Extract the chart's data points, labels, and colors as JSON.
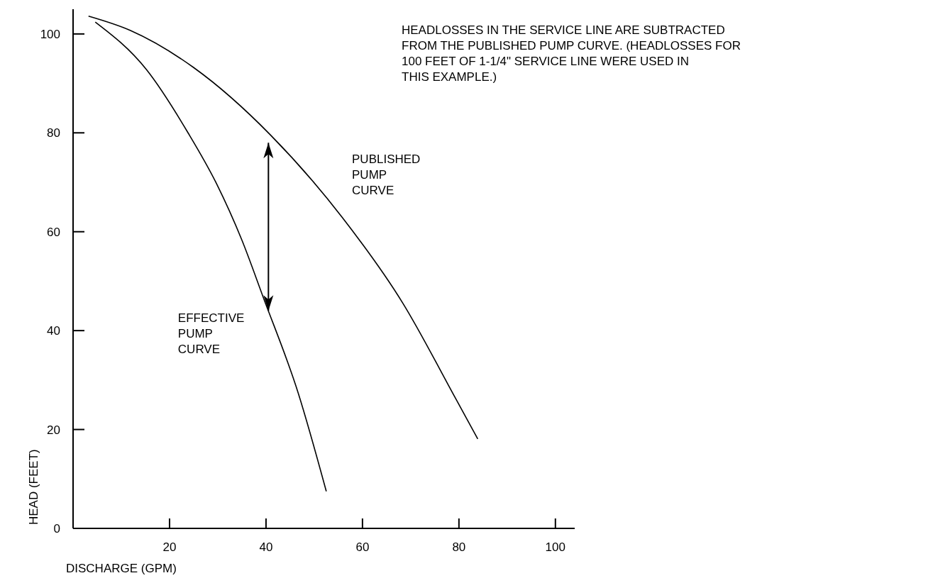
{
  "chart_data": {
    "type": "line",
    "xlabel": "DISCHARGE (GPM)",
    "ylabel": "HEAD (FEET)",
    "annotations": [
      "HEADLOSSES IN THE SERVICE LINE ARE SUBTRACTED FROM THE PUBLISHED PUMP CURVE. (HEADLOSSES FOR 100 FEET OF 1-1/4\" SERVICE LINE WERE USED IN THIS EXAMPLE.)"
    ],
    "series": [
      {
        "name": "PUBLISHED PUMP CURVE",
        "color": "#000000",
        "x": [
          3.2,
          11.9,
          25,
          40.9,
          55.8,
          68.4,
          79.3,
          83.9
        ],
        "values": [
          103.6,
          100.7,
          93.2,
          79.6,
          62.9,
          45.5,
          26.3,
          18.1
        ]
      },
      {
        "name": "EFFECTIVE PUMP CURVE",
        "color": "#000000",
        "x": [
          4.6,
          15.2,
          23.9,
          29.7,
          35,
          39.4,
          46.7,
          52.5
        ],
        "values": [
          102.4,
          92.8,
          79.9,
          69.8,
          58.3,
          46.8,
          27.3,
          7.5
        ]
      }
    ],
    "xlim": [
      0,
      104
    ],
    "ylim": [
      0,
      105
    ],
    "xticks": [
      20,
      40,
      60,
      80,
      100
    ],
    "yticks": [
      0,
      20,
      40,
      60,
      80,
      100
    ],
    "grid": false,
    "marker": "none",
    "line_style": "solid"
  }
}
